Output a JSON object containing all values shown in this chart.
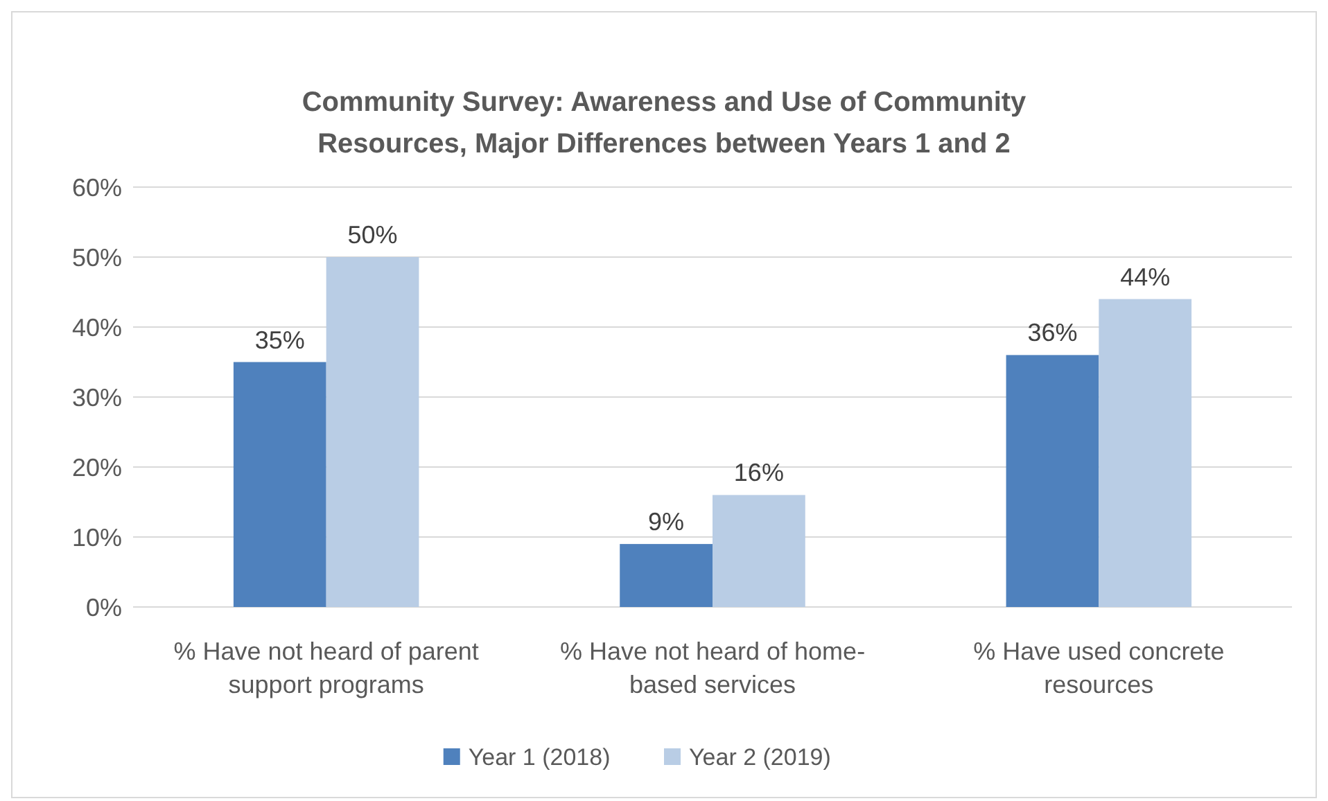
{
  "chart_data": {
    "type": "bar",
    "title": "Community Survey: Awareness and Use of Community Resources, Major Differences between Years 1 and 2",
    "categories": [
      "% Have not heard of parent support programs",
      "% Have not heard of home-based services",
      "% Have used concrete resources"
    ],
    "series": [
      {
        "name": "Year 1 (2018)",
        "color": "#4f81bd",
        "values": [
          35,
          9,
          36
        ],
        "value_labels": [
          "35%",
          "9%",
          "36%"
        ]
      },
      {
        "name": "Year 2 (2019)",
        "color": "#b9cde5",
        "values": [
          50,
          16,
          44
        ],
        "value_labels": [
          "50%",
          "16%",
          "44%"
        ]
      }
    ],
    "ylim": [
      0,
      60
    ],
    "yticks": [
      {
        "value": 0,
        "label": "0%"
      },
      {
        "value": 10,
        "label": "10%"
      },
      {
        "value": 20,
        "label": "20%"
      },
      {
        "value": 30,
        "label": "30%"
      },
      {
        "value": 40,
        "label": "40%"
      },
      {
        "value": 50,
        "label": "50%"
      },
      {
        "value": 60,
        "label": "60%"
      }
    ],
    "grid": "y",
    "legend": "bottom"
  }
}
